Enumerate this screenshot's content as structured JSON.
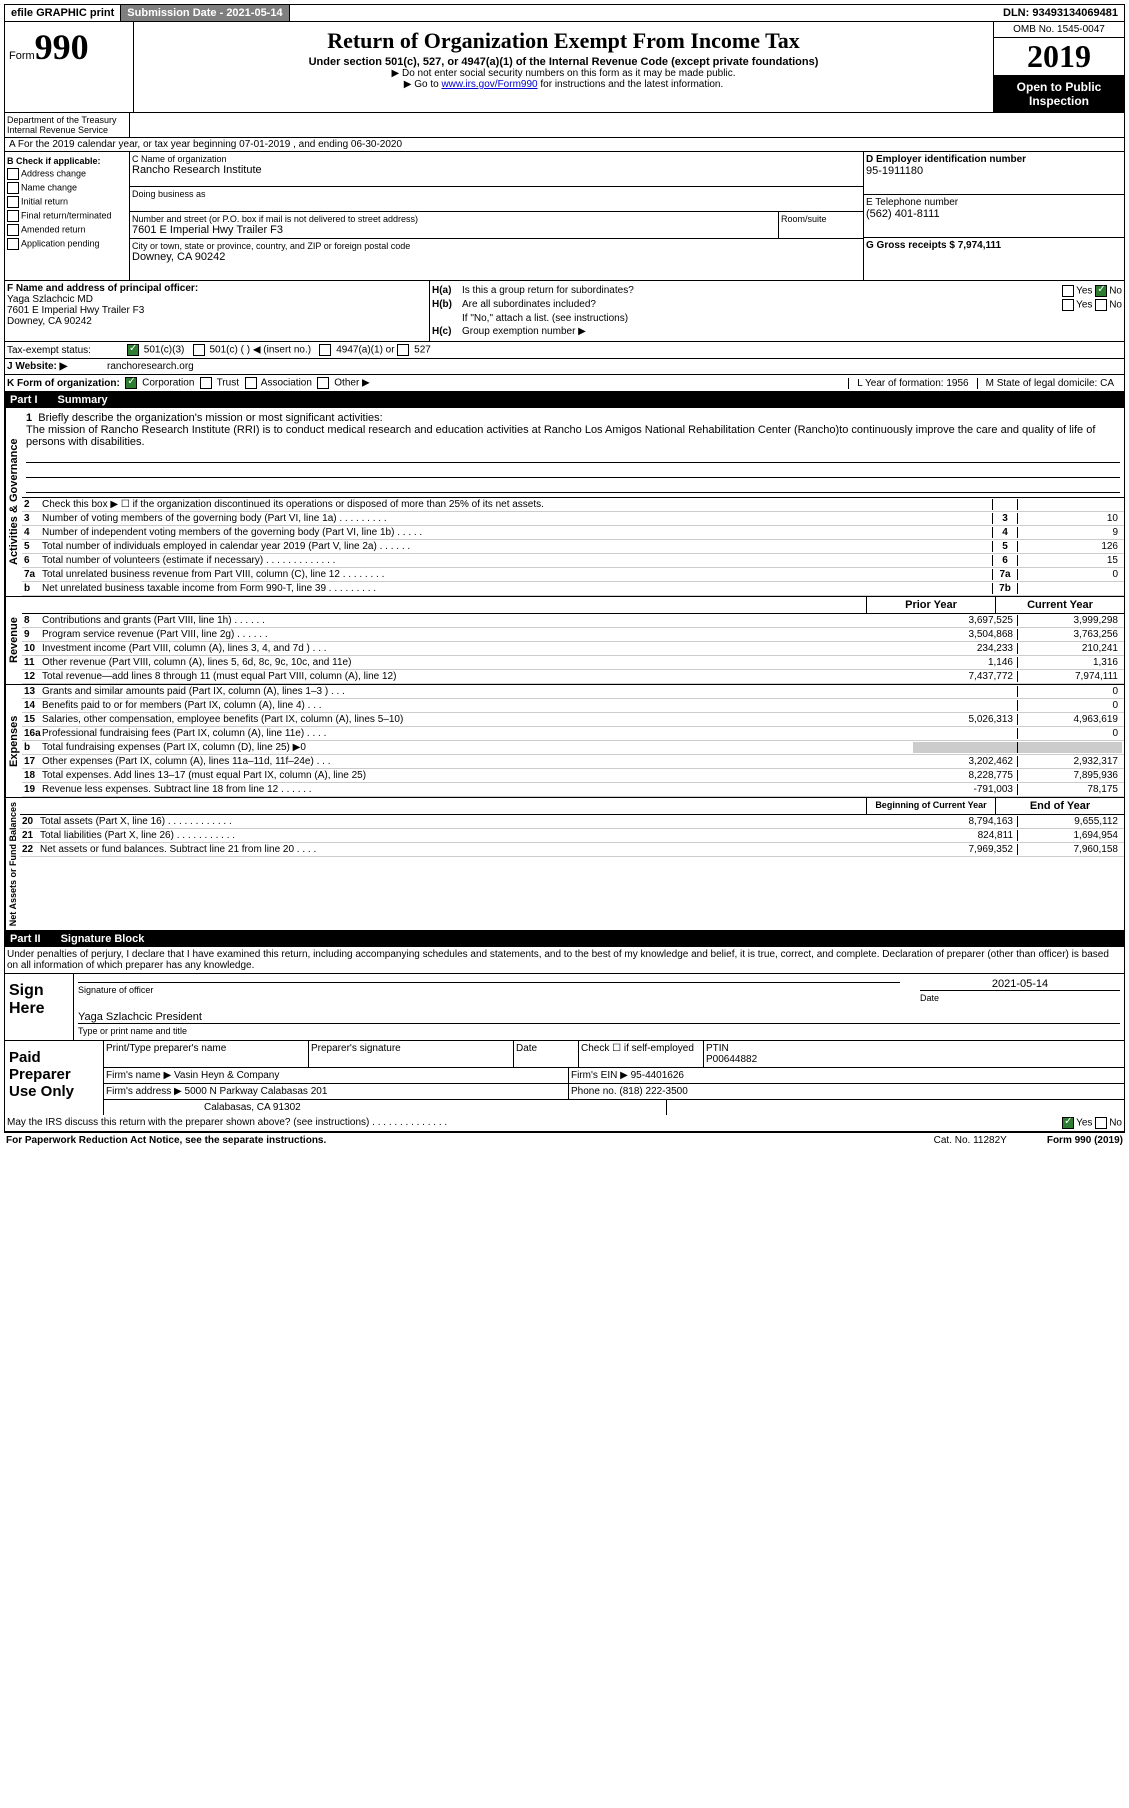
{
  "topbar": {
    "efile": "efile GRAPHIC print",
    "submission": "Submission Date - 2021-05-14",
    "dln": "DLN: 93493134069481"
  },
  "header": {
    "form_label": "Form",
    "form_number": "990",
    "dept1": "Department of the Treasury",
    "dept2": "Internal Revenue Service",
    "title": "Return of Organization Exempt From Income Tax",
    "subtitle": "Under section 501(c), 527, or 4947(a)(1) of the Internal Revenue Code (except private foundations)",
    "note1": "▶ Do not enter social security numbers on this form as it may be made public.",
    "note2_pre": "▶ Go to ",
    "note2_link": "www.irs.gov/Form990",
    "note2_post": " for instructions and the latest information.",
    "omb": "OMB No. 1545-0047",
    "year": "2019",
    "open": "Open to Public Inspection"
  },
  "section_a": "A For the 2019 calendar year, or tax year beginning 07-01-2019   , and ending 06-30-2020",
  "section_b": {
    "label": "B Check if applicable:",
    "opts": [
      "Address change",
      "Name change",
      "Initial return",
      "Final return/terminated",
      "Amended return",
      "Application pending"
    ]
  },
  "section_c": {
    "name_label": "C Name of organization",
    "name": "Rancho Research Institute",
    "dba_label": "Doing business as",
    "addr_label": "Number and street (or P.O. box if mail is not delivered to street address)",
    "addr": "7601 E Imperial Hwy Trailer F3",
    "room_label": "Room/suite",
    "city_label": "City or town, state or province, country, and ZIP or foreign postal code",
    "city": "Downey, CA  90242"
  },
  "section_d": {
    "ein_label": "D Employer identification number",
    "ein": "95-1911180",
    "phone_label": "E Telephone number",
    "phone": "(562) 401-8111",
    "gross_label": "G Gross receipts $ 7,974,111"
  },
  "section_f": {
    "label": "F  Name and address of principal officer:",
    "name": "Yaga Szlachcic MD",
    "addr1": "7601 E Imperial Hwy Trailer F3",
    "addr2": "Downey, CA  90242"
  },
  "section_h": {
    "ha_label": "H(a)",
    "ha_text": "Is this a group return for subordinates?",
    "hb_label": "H(b)",
    "hb_text": "Are all subordinates included?",
    "hb_note": "If \"No,\" attach a list. (see instructions)",
    "hc_label": "H(c)",
    "hc_text": "Group exemption number ▶",
    "yes": "Yes",
    "no": "No"
  },
  "tax_status": {
    "label": "Tax-exempt status:",
    "o1": "501(c)(3)",
    "o2": "501(c) (  ) ◀ (insert no.)",
    "o3": "4947(a)(1) or",
    "o4": "527"
  },
  "website": {
    "label": "J   Website: ▶",
    "value": "ranchoresearch.org"
  },
  "section_k": {
    "label": "K Form of organization:",
    "o1": "Corporation",
    "o2": "Trust",
    "o3": "Association",
    "o4": "Other ▶",
    "l_label": "L Year of formation: 1956",
    "m_label": "M State of legal domicile: CA"
  },
  "part1": {
    "num": "Part I",
    "title": "Summary"
  },
  "mission": {
    "num": "1",
    "label": "Briefly describe the organization's mission or most significant activities:",
    "text": "The mission of Rancho Research Institute (RRI) is to conduct medical research and education activities at Rancho Los Amigos National Rehabilitation Center (Rancho)to continuously improve the care and quality of life of persons with disabilities."
  },
  "vlabels": {
    "gov": "Activities & Governance",
    "rev": "Revenue",
    "exp": "Expenses",
    "net": "Net Assets or Fund Balances"
  },
  "gov_lines": [
    {
      "n": "2",
      "t": "Check this box ▶ ☐  if the organization discontinued its operations or disposed of more than 25% of its net assets.",
      "nb": "",
      "v": ""
    },
    {
      "n": "3",
      "t": "Number of voting members of the governing body (Part VI, line 1a)  .   .   .   .   .   .   .   .   .",
      "nb": "3",
      "v": "10"
    },
    {
      "n": "4",
      "t": "Number of independent voting members of the governing body (Part VI, line 1b)  .   .   .   .   .",
      "nb": "4",
      "v": "9"
    },
    {
      "n": "5",
      "t": "Total number of individuals employed in calendar year 2019 (Part V, line 2a)  .   .   .   .   .   .",
      "nb": "5",
      "v": "126"
    },
    {
      "n": "6",
      "t": "Total number of volunteers (estimate if necessary)  .   .   .   .   .   .   .   .   .   .   .   .   .",
      "nb": "6",
      "v": "15"
    },
    {
      "n": "7a",
      "t": "Total unrelated business revenue from Part VIII, column (C), line 12  .   .   .   .   .   .   .   .",
      "nb": "7a",
      "v": "0"
    },
    {
      "n": "b",
      "t": "Net unrelated business taxable income from Form 990-T, line 39  .   .   .   .   .   .   .   .   .",
      "nb": "7b",
      "v": ""
    }
  ],
  "cols": {
    "prior": "Prior Year",
    "current": "Current Year"
  },
  "rev_lines": [
    {
      "n": "8",
      "t": "Contributions and grants (Part VIII, line 1h)  .   .   .   .   .   .",
      "p": "3,697,525",
      "c": "3,999,298"
    },
    {
      "n": "9",
      "t": "Program service revenue (Part VIII, line 2g)  .   .   .   .   .   .",
      "p": "3,504,868",
      "c": "3,763,256"
    },
    {
      "n": "10",
      "t": "Investment income (Part VIII, column (A), lines 3, 4, and 7d )  .   .   .",
      "p": "234,233",
      "c": "210,241"
    },
    {
      "n": "11",
      "t": "Other revenue (Part VIII, column (A), lines 5, 6d, 8c, 9c, 10c, and 11e)",
      "p": "1,146",
      "c": "1,316"
    },
    {
      "n": "12",
      "t": "Total revenue—add lines 8 through 11 (must equal Part VIII, column (A), line 12)",
      "p": "7,437,772",
      "c": "7,974,111"
    }
  ],
  "exp_lines": [
    {
      "n": "13",
      "t": "Grants and similar amounts paid (Part IX, column (A), lines 1–3 )  .   .   .",
      "p": "",
      "c": "0"
    },
    {
      "n": "14",
      "t": "Benefits paid to or for members (Part IX, column (A), line 4)  .   .   .",
      "p": "",
      "c": "0"
    },
    {
      "n": "15",
      "t": "Salaries, other compensation, employee benefits (Part IX, column (A), lines 5–10)",
      "p": "5,026,313",
      "c": "4,963,619"
    },
    {
      "n": "16a",
      "t": "Professional fundraising fees (Part IX, column (A), line 11e)  .   .   .   .",
      "p": "",
      "c": "0"
    },
    {
      "n": "b",
      "t": "Total fundraising expenses (Part IX, column (D), line 25) ▶0",
      "p": "shaded",
      "c": "shaded"
    },
    {
      "n": "17",
      "t": "Other expenses (Part IX, column (A), lines 11a–11d, 11f–24e)  .   .   .",
      "p": "3,202,462",
      "c": "2,932,317"
    },
    {
      "n": "18",
      "t": "Total expenses. Add lines 13–17 (must equal Part IX, column (A), line 25)",
      "p": "8,228,775",
      "c": "7,895,936"
    },
    {
      "n": "19",
      "t": "Revenue less expenses. Subtract line 18 from line 12  .   .   .   .   .   .",
      "p": "-791,003",
      "c": "78,175"
    }
  ],
  "net_cols": {
    "beg": "Beginning of Current Year",
    "end": "End of Year"
  },
  "net_lines": [
    {
      "n": "20",
      "t": "Total assets (Part X, line 16)  .   .   .   .   .   .   .   .   .   .   .   .",
      "p": "8,794,163",
      "c": "9,655,112"
    },
    {
      "n": "21",
      "t": "Total liabilities (Part X, line 26)  .   .   .   .   .   .   .   .   .   .   .",
      "p": "824,811",
      "c": "1,694,954"
    },
    {
      "n": "22",
      "t": "Net assets or fund balances. Subtract line 21 from line 20  .   .   .   .",
      "p": "7,969,352",
      "c": "7,960,158"
    }
  ],
  "part2": {
    "num": "Part II",
    "title": "Signature Block"
  },
  "sig": {
    "text": "Under penalties of perjury, I declare that I have examined this return, including accompanying schedules and statements, and to the best of my knowledge and belief, it is true, correct, and complete. Declaration of preparer (other than officer) is based on all information of which preparer has any knowledge.",
    "sign_here": "Sign Here",
    "sig_officer": "Signature of officer",
    "date": "Date",
    "date_val": "2021-05-14",
    "name_title": "Yaga Szlachcic  President",
    "name_caption": "Type or print name and title"
  },
  "paid": {
    "label": "Paid Preparer Use Only",
    "h1": "Print/Type preparer's name",
    "h2": "Preparer's signature",
    "h3": "Date",
    "h4": "Check ☐ if self-employed",
    "h5": "PTIN",
    "ptin": "P00644882",
    "firm_label": "Firm's name    ▶",
    "firm": "Vasin Heyn & Company",
    "ein_label": "Firm's EIN ▶",
    "ein": "95-4401626",
    "addr_label": "Firm's address ▶",
    "addr1": "5000 N Parkway Calabasas 201",
    "addr2": "Calabasas, CA  91302",
    "phone_label": "Phone no.",
    "phone": "(818) 222-3500"
  },
  "discuss": "May the IRS discuss this return with the preparer shown above? (see instructions)  .   .   .   .   .   .   .   .   .   .   .   .   .   .",
  "footer": {
    "left": "For Paperwork Reduction Act Notice, see the separate instructions.",
    "mid": "Cat. No. 11282Y",
    "right": "Form 990 (2019)"
  }
}
